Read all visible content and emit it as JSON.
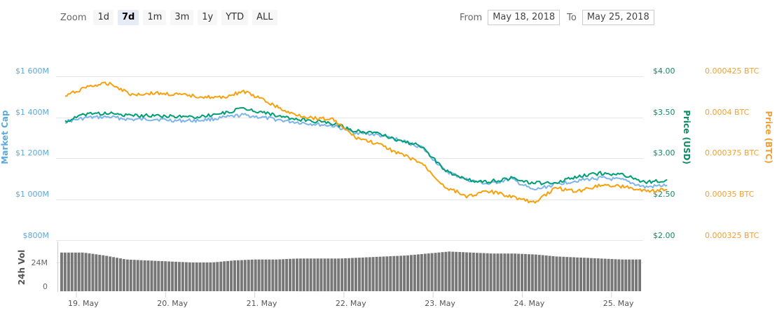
{
  "toolbar": {
    "zoom_label": "Zoom",
    "zoom_buttons": [
      {
        "label": "1d",
        "active": false
      },
      {
        "label": "7d",
        "active": true
      },
      {
        "label": "1m",
        "active": false
      },
      {
        "label": "3m",
        "active": false
      },
      {
        "label": "1y",
        "active": false
      },
      {
        "label": "YTD",
        "active": false
      },
      {
        "label": "ALL",
        "active": false
      }
    ],
    "from_label": "From",
    "from_value": "May 18, 2018",
    "to_label": "To",
    "to_value": "May 25, 2018"
  },
  "colors": {
    "market_cap": "#7cb5ec",
    "market_cap_axis": "#5ea8d8",
    "price_usd": "#009e73",
    "price_btc": "#f7a10e",
    "volume": "#777777",
    "grid": "#e6e6e6"
  },
  "chart_data": {
    "type": "line",
    "title": "",
    "x_labels": [
      "19. May",
      "20. May",
      "21. May",
      "22. May",
      "23. May",
      "24. May",
      "25. May"
    ],
    "axes": {
      "market_cap": {
        "label": "Market Cap",
        "ticks": [
          "$1 600M",
          "$1 400M",
          "$1 200M",
          "$1 000M",
          "$800M"
        ],
        "range": [
          800,
          1600
        ],
        "unit": "M USD"
      },
      "price_usd": {
        "label": "Price (USD)",
        "ticks": [
          "$4.00",
          "$3.50",
          "$3.00",
          "$2.50",
          "$2.00"
        ],
        "range": [
          2.0,
          4.0
        ]
      },
      "price_btc": {
        "label": "Price (BTC)",
        "ticks": [
          "0.000425 BTC",
          "0.0004 BTC",
          "0.000375 BTC",
          "0.00035 BTC",
          "0.000325 BTC"
        ],
        "range": [
          0.000325,
          0.000425
        ]
      },
      "volume": {
        "label": "24h Vol",
        "ticks": [
          "24M",
          "0"
        ]
      }
    },
    "x": [
      0.0,
      0.25,
      0.5,
      0.75,
      1.0,
      1.25,
      1.5,
      1.75,
      2.0,
      2.25,
      2.5,
      2.75,
      3.0,
      3.25,
      3.5,
      3.75,
      4.0,
      4.25,
      4.5,
      4.75,
      5.0,
      5.25,
      5.5,
      5.75,
      6.0,
      6.25,
      6.5,
      6.75
    ],
    "series": [
      {
        "name": "Price (BTC)",
        "axis": "price_btc",
        "values": [
          0.000413,
          0.000419,
          0.000421,
          0.000414,
          0.000415,
          0.000414,
          0.000413,
          0.000412,
          0.000416,
          0.00041,
          0.000403,
          0.0004,
          0.000399,
          0.000388,
          0.000384,
          0.000378,
          0.000372,
          0.000358,
          0.000352,
          0.000355,
          0.000352,
          0.000348,
          0.000357,
          0.000355,
          0.000359,
          0.000358,
          0.000355,
          0.000356
        ]
      },
      {
        "name": "Price (USD)",
        "axis": "price_usd",
        "values": [
          3.45,
          3.55,
          3.55,
          3.52,
          3.53,
          3.51,
          3.51,
          3.55,
          3.61,
          3.56,
          3.49,
          3.46,
          3.43,
          3.34,
          3.31,
          3.22,
          3.15,
          2.86,
          2.74,
          2.72,
          2.76,
          2.7,
          2.71,
          2.78,
          2.82,
          2.8,
          2.71,
          2.74
        ]
      },
      {
        "name": "Market Cap",
        "axis": "market_cap",
        "values": [
          1380,
          1400,
          1403,
          1390,
          1393,
          1385,
          1386,
          1398,
          1413,
          1398,
          1382,
          1370,
          1360,
          1328,
          1315,
          1290,
          1255,
          1142,
          1097,
          1075,
          1100,
          1045,
          1075,
          1093,
          1105,
          1095,
          1060,
          1070
        ]
      },
      {
        "name": "24h Vol",
        "axis": "volume",
        "type": "bar",
        "values": [
          27,
          27,
          24,
          20,
          19,
          18,
          17,
          17,
          19,
          20,
          20,
          21,
          21,
          21,
          22,
          23,
          24,
          26,
          28,
          27,
          26,
          26,
          25,
          23,
          22,
          21,
          20,
          20
        ]
      }
    ],
    "legend": []
  }
}
